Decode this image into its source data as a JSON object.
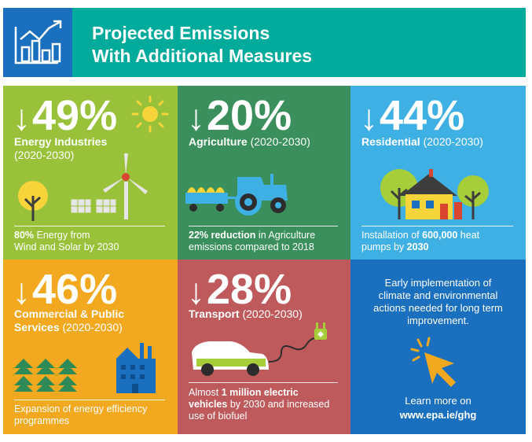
{
  "header": {
    "title_line1": "Projected Emissions",
    "title_line2": "With Additional Measures",
    "icon": "bar-chart-growth-icon"
  },
  "tiles": {
    "energy": {
      "arrow": "↓",
      "percent": "49%",
      "sector": "Energy Industries",
      "period": "(2020-2030)",
      "caption_bold": "80%",
      "caption_rest": " Energy from",
      "caption_line2": "Wind and Solar by 2030",
      "color": "#99c23a"
    },
    "agriculture": {
      "arrow": "↓",
      "percent": "20%",
      "sector": "Agriculture",
      "period": " (2020-2030)",
      "caption_bold": "22% reduction",
      "caption_rest": " in Agriculture",
      "caption_line2": "emissions compared to 2018",
      "color": "#3a8f5c"
    },
    "residential": {
      "arrow": "↓",
      "percent": "44%",
      "sector": "Residential",
      "period": " (2020-2030)",
      "caption_pre": "Installation of ",
      "caption_bold": "600,000",
      "caption_rest": " heat",
      "caption_line2_pre": "pumps by ",
      "caption_line2_bold": "2030",
      "color": "#3fb0e4"
    },
    "commercial": {
      "arrow": "↓",
      "percent": "46%",
      "sector_line1": "Commercial & Public",
      "sector_line2": "Services",
      "period": " (2020-2030)",
      "caption_line1": "Expansion of energy efficiency",
      "caption_line2": "programmes",
      "color": "#f2a91f"
    },
    "transport": {
      "arrow": "↓",
      "percent": "28%",
      "sector": "Transport",
      "period": " (2020-2030)",
      "caption_pre": "Almost ",
      "caption_bold": "1 million electric",
      "caption_line2_bold": "vehicles",
      "caption_line2_rest": " by 2030 and increased",
      "caption_line3": "use of biofuel",
      "color": "#bf5a5c"
    },
    "info": {
      "line1": "Early implementation of",
      "line2": "climate and environmental",
      "line3": "actions needed for long term",
      "line4": "improvement.",
      "learn": "Learn more on",
      "url": "www.epa.ie/ghg",
      "color": "#1a6fbf"
    }
  }
}
